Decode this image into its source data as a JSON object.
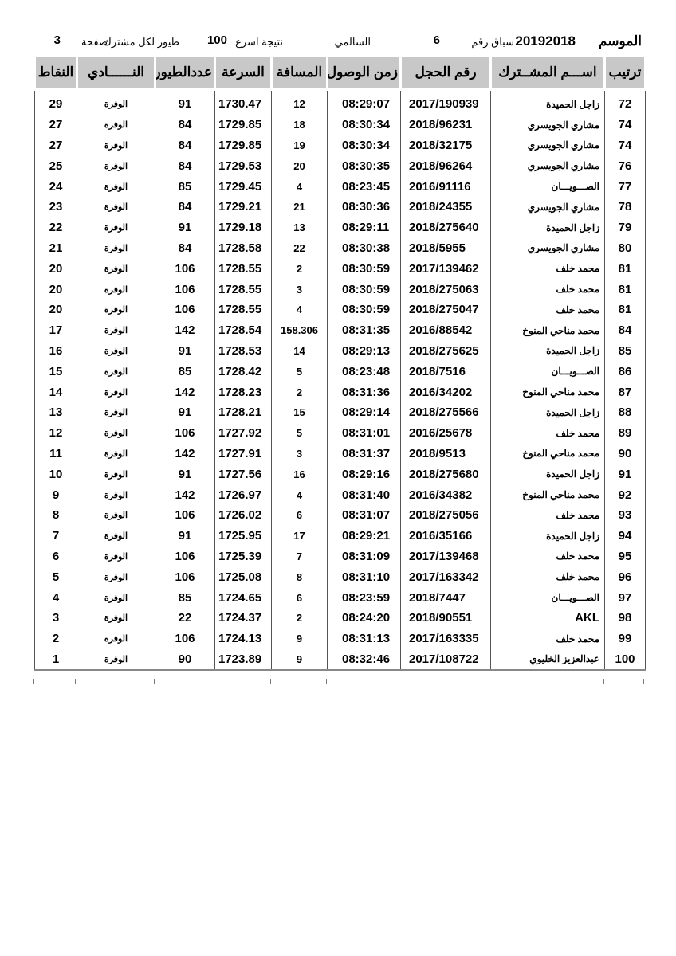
{
  "title_line": {
    "season_label": "الموسم",
    "season": "20192018",
    "race_label": "سباق رقم",
    "race_number": "6",
    "location": "السالمي",
    "result_label": "نتيجة اسرع",
    "result_count": "100",
    "per_member_label": "طيور لكل مشترك",
    "page_label": "صفحة",
    "page_number": "3"
  },
  "columns": [
    "ترتيب",
    "اســـم المشــترك",
    "رقم الحجل",
    "زمن الوصول",
    "المسافة",
    "السرعة",
    "عددالطيور",
    "النــــــادي",
    "النقاط"
  ],
  "rows": [
    [
      "72",
      "زاجل الحميدة",
      "2017/190939",
      "08:29:07",
      "12",
      "1730.47",
      "91",
      "الوفرة",
      "29"
    ],
    [
      "74",
      "مشاري الجويسري",
      "2018/96231",
      "08:30:34",
      "18",
      "1729.85",
      "84",
      "الوفرة",
      "27"
    ],
    [
      "74",
      "مشاري الجويسري",
      "2018/32175",
      "08:30:34",
      "19",
      "1729.85",
      "84",
      "الوفرة",
      "27"
    ],
    [
      "76",
      "مشاري الجويسري",
      "2018/96264",
      "08:30:35",
      "20",
      "1729.53",
      "84",
      "الوفرة",
      "25"
    ],
    [
      "77",
      "الصـــويـــان",
      "2016/91116",
      "08:23:45",
      "4",
      "1729.45",
      "85",
      "الوفرة",
      "24"
    ],
    [
      "78",
      "مشاري الجويسري",
      "2018/24355",
      "08:30:36",
      "21",
      "1729.21",
      "84",
      "الوفرة",
      "23"
    ],
    [
      "79",
      "زاجل الحميدة",
      "2018/275640",
      "08:29:11",
      "13",
      "1729.18",
      "91",
      "الوفرة",
      "22"
    ],
    [
      "80",
      "مشاري الجويسري",
      "2018/5955",
      "08:30:38",
      "22",
      "1728.58",
      "84",
      "الوفرة",
      "21"
    ],
    [
      "81",
      "محمد خلف",
      "2017/139462",
      "08:30:59",
      "2",
      "1728.55",
      "106",
      "الوفرة",
      "20"
    ],
    [
      "81",
      "محمد خلف",
      "2018/275063",
      "08:30:59",
      "3",
      "1728.55",
      "106",
      "الوفرة",
      "20"
    ],
    [
      "81",
      "محمد خلف",
      "2018/275047",
      "08:30:59",
      "4",
      "1728.55",
      "106",
      "الوفرة",
      "20"
    ],
    [
      "84",
      "محمد مناحي المنوخ",
      "2016/88542",
      "08:31:35",
      "158.306",
      "1728.54",
      "142",
      "الوفرة",
      "17"
    ],
    [
      "85",
      "زاجل الحميدة",
      "2018/275625",
      "08:29:13",
      "14",
      "1728.53",
      "91",
      "الوفرة",
      "16"
    ],
    [
      "86",
      "الصـــويـــان",
      "2018/7516",
      "08:23:48",
      "5",
      "1728.42",
      "85",
      "الوفرة",
      "15"
    ],
    [
      "87",
      "محمد مناحي المنوخ",
      "2016/34202",
      "08:31:36",
      "2",
      "1728.23",
      "142",
      "الوفرة",
      "14"
    ],
    [
      "88",
      "زاجل الحميدة",
      "2018/275566",
      "08:29:14",
      "15",
      "1728.21",
      "91",
      "الوفرة",
      "13"
    ],
    [
      "89",
      "محمد خلف",
      "2016/25678",
      "08:31:01",
      "5",
      "1727.92",
      "106",
      "الوفرة",
      "12"
    ],
    [
      "90",
      "محمد مناحي المنوخ",
      "2018/9513",
      "08:31:37",
      "3",
      "1727.91",
      "142",
      "الوفرة",
      "11"
    ],
    [
      "91",
      "زاجل الحميدة",
      "2018/275680",
      "08:29:16",
      "16",
      "1727.56",
      "91",
      "الوفرة",
      "10"
    ],
    [
      "92",
      "محمد مناحي المنوخ",
      "2016/34382",
      "08:31:40",
      "4",
      "1726.97",
      "142",
      "الوفرة",
      "9"
    ],
    [
      "93",
      "محمد خلف",
      "2018/275056",
      "08:31:07",
      "6",
      "1726.02",
      "106",
      "الوفرة",
      "8"
    ],
    [
      "94",
      "زاجل الحميدة",
      "2016/35166",
      "08:29:21",
      "17",
      "1725.95",
      "91",
      "الوفرة",
      "7"
    ],
    [
      "95",
      "محمد خلف",
      "2017/139468",
      "08:31:09",
      "7",
      "1725.39",
      "106",
      "الوفرة",
      "6"
    ],
    [
      "96",
      "محمد خلف",
      "2017/163342",
      "08:31:10",
      "8",
      "1725.08",
      "106",
      "الوفرة",
      "5"
    ],
    [
      "97",
      "الصـــويـــان",
      "2018/7447",
      "08:23:59",
      "6",
      "1724.65",
      "85",
      "الوفرة",
      "4"
    ],
    [
      "98",
      "AKL",
      "2018/90551",
      "08:24:20",
      "2",
      "1724.37",
      "22",
      "الوفرة",
      "3"
    ],
    [
      "99",
      "محمد خلف",
      "2017/163335",
      "08:31:13",
      "9",
      "1724.13",
      "106",
      "الوفرة",
      "2"
    ],
    [
      "100",
      "عبدالعزيز الخليوي",
      "2017/108722",
      "08:32:46",
      "9",
      "1723.89",
      "90",
      "الوفرة",
      "1"
    ]
  ]
}
